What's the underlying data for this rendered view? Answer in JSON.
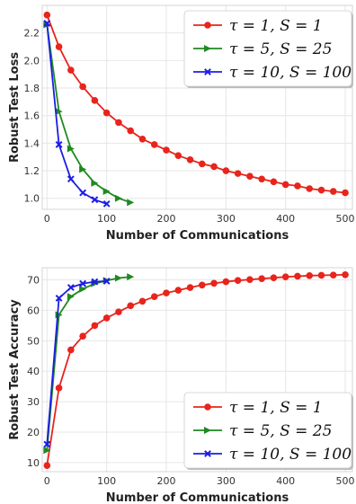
{
  "chart_data": [
    {
      "type": "line",
      "xlabel": "Number of Communications",
      "ylabel": "Robust Test Loss",
      "xlim": [
        -8,
        512
      ],
      "ylim": [
        0.92,
        2.4
      ],
      "xticks": [
        "0",
        "100",
        "200",
        "300",
        "400",
        "500"
      ],
      "yticks": [
        "1.0",
        "1.2",
        "1.4",
        "1.6",
        "1.8",
        "2.0",
        "2.2"
      ],
      "grid": true,
      "legend_position": "top-right",
      "series": [
        {
          "name": "τ = 1,   S = 1",
          "color": "#e8241c",
          "marker": "circle",
          "x": [
            0,
            20,
            40,
            60,
            80,
            100,
            120,
            140,
            160,
            180,
            200,
            220,
            240,
            260,
            280,
            300,
            320,
            340,
            360,
            380,
            400,
            420,
            440,
            460,
            480,
            500
          ],
          "y": [
            2.33,
            2.1,
            1.93,
            1.81,
            1.71,
            1.62,
            1.55,
            1.49,
            1.43,
            1.39,
            1.35,
            1.31,
            1.28,
            1.25,
            1.23,
            1.2,
            1.18,
            1.16,
            1.14,
            1.12,
            1.1,
            1.09,
            1.07,
            1.06,
            1.05,
            1.04
          ]
        },
        {
          "name": "τ = 5,   S = 25",
          "color": "#1f8a1f",
          "marker": "triangle-right",
          "x": [
            0,
            20,
            40,
            60,
            80,
            100,
            120,
            140
          ],
          "y": [
            2.26,
            1.63,
            1.36,
            1.21,
            1.11,
            1.05,
            1.0,
            0.97
          ]
        },
        {
          "name": "τ = 10, S = 100",
          "color": "#1d1de6",
          "marker": "x",
          "x": [
            0,
            20,
            40,
            60,
            80,
            100
          ],
          "y": [
            2.27,
            1.39,
            1.14,
            1.04,
            0.99,
            0.96
          ]
        }
      ]
    },
    {
      "type": "line",
      "xlabel": "Number of Communications",
      "ylabel": "Robust Test Accuracy",
      "xlim": [
        -8,
        512
      ],
      "ylim": [
        7,
        74
      ],
      "xticks": [
        "0",
        "100",
        "200",
        "300",
        "400",
        "500"
      ],
      "yticks": [
        "10",
        "20",
        "30",
        "40",
        "50",
        "60",
        "70"
      ],
      "grid": true,
      "legend_position": "bottom-right",
      "series": [
        {
          "name": "τ = 1,   S = 1",
          "color": "#e8241c",
          "marker": "circle",
          "x": [
            0,
            20,
            40,
            60,
            80,
            100,
            120,
            140,
            160,
            180,
            200,
            220,
            240,
            260,
            280,
            300,
            320,
            340,
            360,
            380,
            400,
            420,
            440,
            460,
            480,
            500
          ],
          "y": [
            9,
            34.5,
            47,
            51.5,
            55,
            57.5,
            59.5,
            61.5,
            63,
            64.5,
            65.7,
            66.6,
            67.5,
            68.3,
            68.9,
            69.4,
            69.8,
            70.1,
            70.4,
            70.7,
            71.0,
            71.2,
            71.4,
            71.5,
            71.6,
            71.7
          ]
        },
        {
          "name": "τ = 5,   S = 25",
          "color": "#1f8a1f",
          "marker": "triangle-right",
          "x": [
            0,
            20,
            40,
            60,
            80,
            100,
            120,
            140
          ],
          "y": [
            14,
            58.5,
            64.5,
            67,
            68.8,
            69.8,
            70.6,
            71
          ]
        },
        {
          "name": "τ = 10, S = 100",
          "color": "#1d1de6",
          "marker": "x",
          "x": [
            0,
            20,
            40,
            60,
            80,
            100
          ],
          "y": [
            16,
            64,
            67.5,
            68.8,
            69.4,
            69.6
          ]
        }
      ]
    }
  ]
}
